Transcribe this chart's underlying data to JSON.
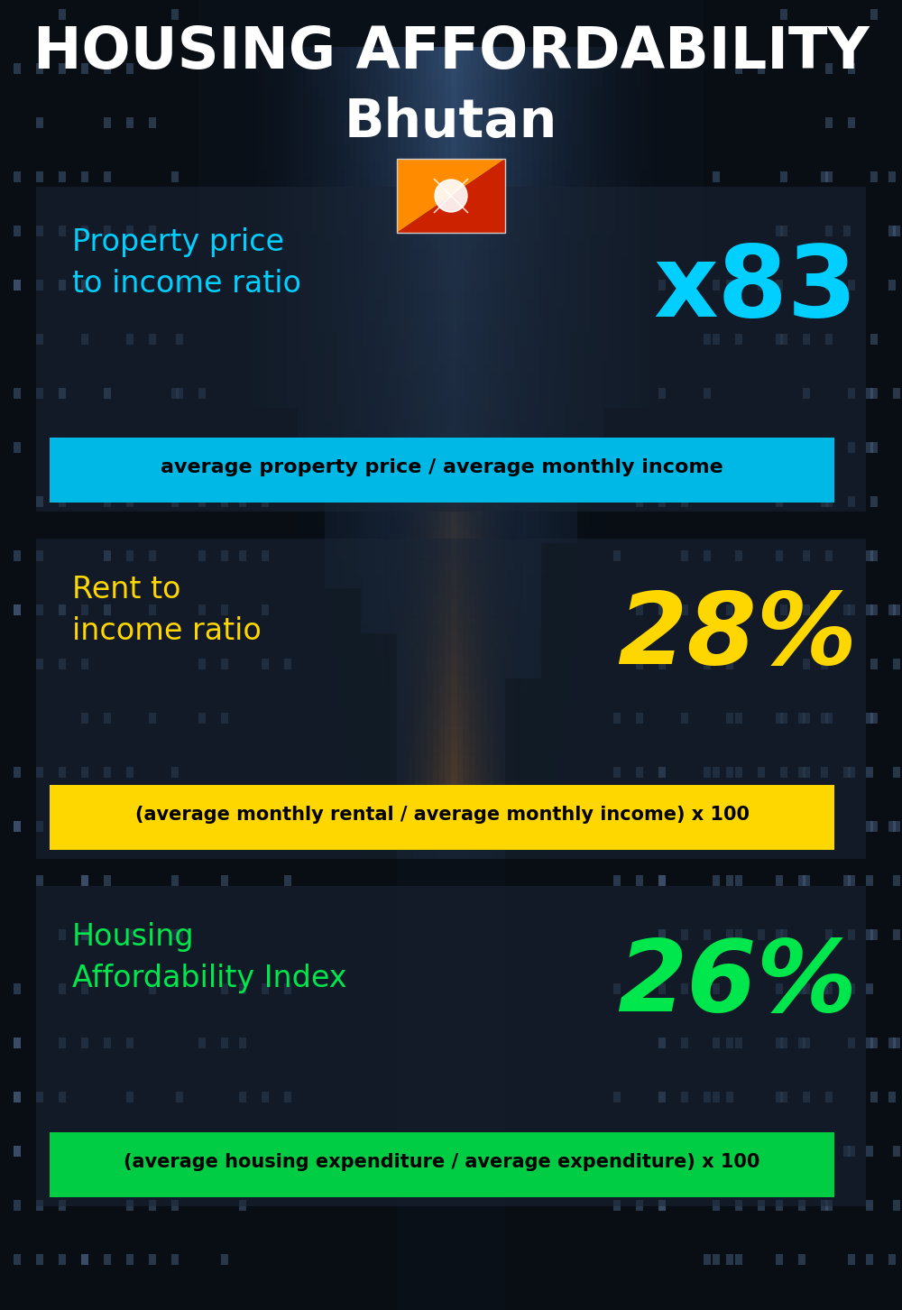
{
  "title_line1": "HOUSING AFFORDABILITY",
  "title_line2": "Bhutan",
  "bg_color": "#0d1520",
  "title1_color": "#ffffff",
  "title2_color": "#ffffff",
  "section1_label": "Property price\nto income ratio",
  "section1_value": "x83",
  "section1_label_color": "#00cfff",
  "section1_value_color": "#00cfff",
  "section1_formula": "average property price / average monthly income",
  "section1_formula_bg": "#00b8e6",
  "section2_label": "Rent to\nincome ratio",
  "section2_value": "28%",
  "section2_label_color": "#ffd700",
  "section2_value_color": "#ffd700",
  "section2_formula": "(average monthly rental / average monthly income) x 100",
  "section2_formula_bg": "#ffd700",
  "section3_label": "Housing\nAffordability Index",
  "section3_value": "26%",
  "section3_label_color": "#00e64d",
  "section3_value_color": "#00e64d",
  "section3_formula": "(average housing expenditure / average expenditure) x 100",
  "section3_formula_bg": "#00cc44",
  "overlay_dark": "#0d1520",
  "overlay_mid": "#1a2535",
  "building_color": "#0a1018",
  "sky_color": "#1a3a5c",
  "panel_alpha": 0.55
}
